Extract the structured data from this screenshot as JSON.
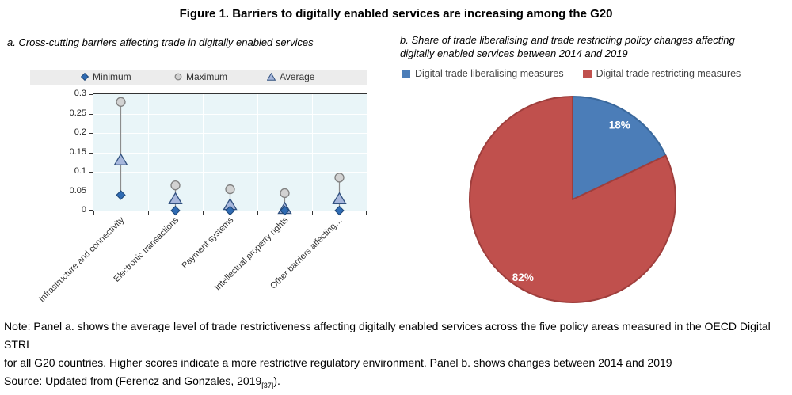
{
  "figure_title": "Figure 1. Barriers to digitally enabled services are increasing among the G20",
  "chart_data": [
    {
      "type": "scatter",
      "panel": "a",
      "title": "a. Cross-cutting barriers affecting trade in digitally enabled services",
      "categories": [
        "Infrastructure and connectivity",
        "Electronic transactions",
        "Payment systems",
        "Intellectual property rights",
        "Other barriers affecting…"
      ],
      "series": [
        {
          "name": "Minimum",
          "marker": "diamond",
          "values": [
            0.04,
            0,
            0,
            0,
            0
          ]
        },
        {
          "name": "Maximum",
          "marker": "circle",
          "values": [
            0.28,
            0.065,
            0.055,
            0.045,
            0.085
          ]
        },
        {
          "name": "Average",
          "marker": "triangle",
          "values": [
            0.13,
            0.03,
            0.015,
            0.005,
            0.03
          ]
        }
      ],
      "ylim": [
        0,
        0.3
      ],
      "y_ticks": [
        "0",
        "0.05",
        "0.1",
        "0.15",
        "0.2",
        "0.25",
        "0.3"
      ],
      "grid": true,
      "legend_position": "top"
    },
    {
      "type": "pie",
      "panel": "b",
      "title_line1": "b. Share of trade liberalising and trade restricting policy changes affecting",
      "title_line2": "digitally enabled services between 2014 and 2019",
      "start_angle_deg": 0,
      "direction": "clockwise",
      "label_color": "#FFFFFF",
      "slices": [
        {
          "label": "Digital trade liberalising measures",
          "value": 18,
          "display": "18%",
          "color": "#4B7DB8",
          "stroke": "#3A689C",
          "label_r": 0.85
        },
        {
          "label": "Digital trade restricting measures",
          "value": 82,
          "display": "82%",
          "color": "#C0504D",
          "stroke": "#9F3E3C",
          "label_r": 0.9
        }
      ]
    }
  ],
  "note": {
    "line1": "Note: Panel a. shows the average level of trade restrictiveness affecting digitally enabled services across the five policy areas measured in the OECD Digital STRI",
    "line2": "for all G20 countries. Higher scores indicate a more restrictive regulatory environment. Panel b. shows changes between 2014 and 2019",
    "source_prefix": "Source: Updated from (Ferencz and Gonzales, 2019",
    "source_ref": "[37]",
    "source_suffix": ")."
  },
  "colors": {
    "plot_bg": "#E9F5F8",
    "plot_border": "#333333",
    "legend_bg": "#ECECEC",
    "min_fill": "#2F6BB3",
    "min_stroke": "#1D4677",
    "max_fill": "#D2D2D2",
    "max_stroke": "#7F7F7F",
    "avg_fill": "#A7B7DC",
    "avg_stroke": "#31517F",
    "hilo_line": "#8C8C8C"
  }
}
